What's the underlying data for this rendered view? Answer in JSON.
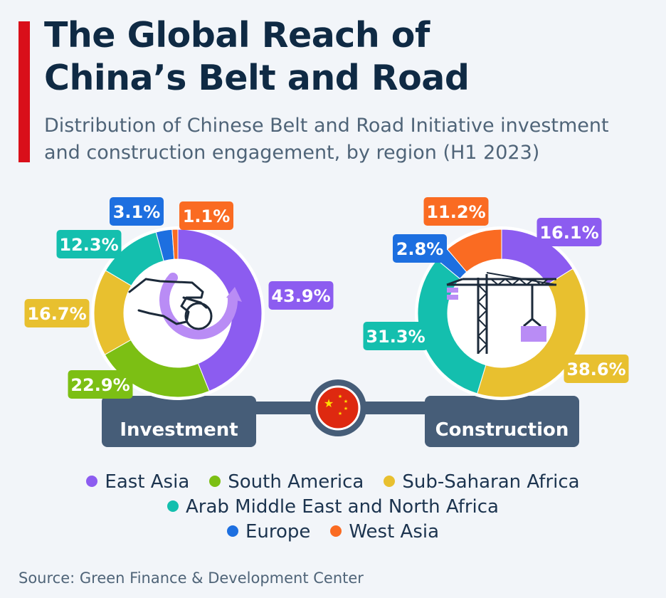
{
  "header": {
    "title_line1": "The Global Reach of",
    "title_line2": "China’s Belt and Road",
    "subtitle_line1": "Distribution of Chinese Belt and Road Initiative investment",
    "subtitle_line2": "and construction engagement, by region (H1 2023)"
  },
  "colors": {
    "accent": "#d90f1a",
    "East Asia": "#8c5cf0",
    "South America": "#7cbf14",
    "Sub-Saharan Africa": "#e8c02f",
    "Arab Middle East and North Africa": "#14bfae",
    "Europe": "#1d6fe0",
    "West Asia": "#fa6b22",
    "label_box": "#465d78"
  },
  "chart_data": [
    {
      "type": "pie",
      "title": "Investment",
      "categories": [
        "East Asia",
        "South America",
        "Sub-Saharan Africa",
        "Arab Middle East and North Africa",
        "Europe",
        "West Asia"
      ],
      "values": [
        43.9,
        22.9,
        16.7,
        12.3,
        3.1,
        1.1
      ],
      "labels": [
        "43.9%",
        "22.9%",
        "16.7%",
        "12.3%",
        "3.1%",
        "1.1%"
      ],
      "icon": "hand-coin-icon"
    },
    {
      "type": "pie",
      "title": "Construction",
      "categories": [
        "East Asia",
        "Sub-Saharan Africa",
        "Arab Middle East and North Africa",
        "Europe",
        "West Asia"
      ],
      "values": [
        16.1,
        38.6,
        31.3,
        2.8,
        11.2
      ],
      "labels": [
        "16.1%",
        "38.6%",
        "31.3%",
        "2.8%",
        "11.2%"
      ],
      "icon": "crane-icon"
    }
  ],
  "center_icon": "china-flag-icon",
  "legend": [
    [
      "East Asia",
      "South America",
      "Sub-Saharan Africa"
    ],
    [
      "Arab Middle East and North Africa"
    ],
    [
      "Europe",
      "West Asia"
    ]
  ],
  "source": "Source: Green Finance & Development Center"
}
